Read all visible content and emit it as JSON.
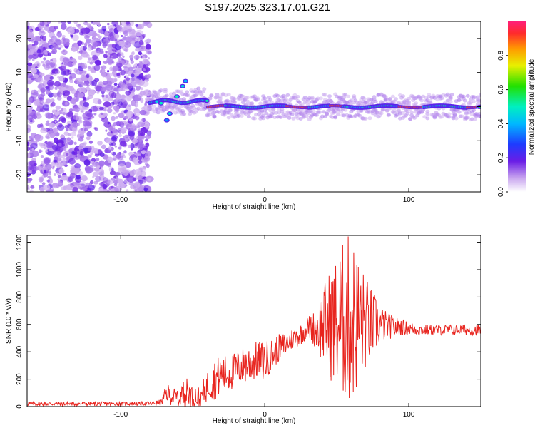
{
  "title": "S197.2025.323.17.01.G21",
  "colors": {
    "snr_line": "#e8241e",
    "frame": "#000000"
  },
  "chart_data": [
    {
      "type": "heatmap",
      "id": "spectrogram",
      "xlabel": "Height of straight line (km)",
      "ylabel": "Frequency (Hz)",
      "xlim": [
        -165,
        150
      ],
      "ylim": [
        -25,
        25
      ],
      "xticks": [
        -100,
        0,
        100
      ],
      "yticks": [
        -20,
        -10,
        0,
        10,
        20
      ],
      "colorbar": {
        "label": "Normalized spectral amplitude",
        "range": [
          0.0,
          1.0
        ],
        "ticks": [
          "0.0",
          "0.2",
          "0.4",
          "0.6",
          "0.8"
        ]
      },
      "description_values": {
        "noise_region_x": [
          -165,
          -80
        ],
        "signal_center_frequency_hz": 0,
        "signal_band_start_x": -80,
        "strongest_segments_x": [
          [
            -40,
            -28
          ],
          [
            15,
            30
          ],
          [
            45,
            55
          ],
          [
            92,
            110
          ],
          [
            140,
            148
          ]
        ]
      }
    },
    {
      "type": "line",
      "id": "snr",
      "xlabel": "Height of straight line (km)",
      "ylabel": "SNR (10 * v/v)",
      "xlim": [
        -165,
        150
      ],
      "ylim": [
        0,
        1250
      ],
      "xticks": [
        -100,
        0,
        100
      ],
      "yticks": [
        0,
        200,
        400,
        600,
        800,
        1000,
        1200
      ],
      "series": [
        {
          "name": "SNR",
          "x": [
            -165,
            -140,
            -120,
            -100,
            -80,
            -72,
            -68,
            -62,
            -55,
            -50,
            -45,
            -40,
            -35,
            -30,
            -25,
            -20,
            -15,
            -10,
            -5,
            0,
            5,
            10,
            15,
            20,
            25,
            30,
            35,
            40,
            45,
            50,
            55,
            60,
            65,
            70,
            75,
            80,
            85,
            90,
            95,
            100,
            110,
            120,
            130,
            140,
            150
          ],
          "values": [
            20,
            20,
            20,
            20,
            22,
            30,
            100,
            60,
            100,
            80,
            60,
            150,
            200,
            230,
            240,
            270,
            300,
            320,
            340,
            330,
            380,
            430,
            460,
            500,
            530,
            580,
            570,
            590,
            600,
            610,
            630,
            640,
            620,
            610,
            600,
            600,
            590,
            580,
            580,
            570,
            560,
            560,
            560,
            560,
            560
          ],
          "amplitude": [
            15,
            15,
            15,
            15,
            15,
            20,
            70,
            70,
            120,
            90,
            90,
            110,
            150,
            150,
            140,
            130,
            140,
            150,
            140,
            150,
            120,
            100,
            90,
            80,
            80,
            80,
            140,
            280,
            400,
            500,
            600,
            650,
            500,
            350,
            250,
            150,
            100,
            80,
            60,
            50,
            40,
            40,
            40,
            40,
            40
          ]
        }
      ]
    }
  ]
}
